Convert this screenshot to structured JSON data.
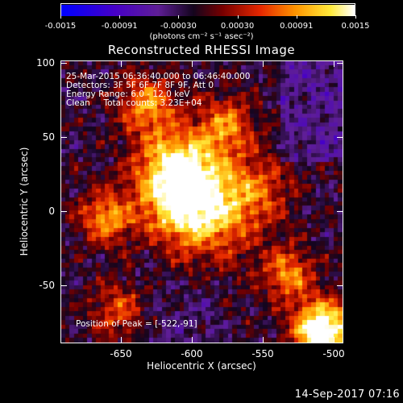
{
  "colorbar": {
    "tick_labels": [
      "-0.0015",
      "-0.00091",
      "-0.00030",
      "0.00030",
      "0.00091",
      "0.0015"
    ],
    "units": "(photons cm⁻² s⁻¹ asec⁻²)"
  },
  "plot": {
    "title": "Reconstructed RHESSI Image",
    "info_lines": [
      "25-Mar-2015 06:36:40.000 to 06:46:40.000",
      "Detectors: 3F 5F 6F 7F 8F 9F, Att 0",
      "Energy Range: 6.0 - 12.0 keV",
      "Clean     Total counts: 3.23E+04"
    ],
    "peak_text": "Position of Peak = [-522,-91]",
    "x_ticks": [
      "-650",
      "-600",
      "-550",
      "-500"
    ],
    "y_ticks": [
      "100",
      "50",
      "0",
      "-50"
    ],
    "xlabel": "Heliocentric X (arcsec)",
    "ylabel": "Heliocentric Y (arcsec)"
  },
  "footer": {
    "timestamp": "14-Sep-2017 07:16"
  },
  "chart_data": {
    "type": "heatmap",
    "title": "Reconstructed RHESSI Image",
    "xlabel": "Heliocentric X (arcsec)",
    "ylabel": "Heliocentric Y (arcsec)",
    "xlim": [
      -680,
      -500
    ],
    "ylim": [
      -91,
      101
    ],
    "x_ticks": [
      -650,
      -600,
      -550,
      -500
    ],
    "y_ticks": [
      100,
      50,
      0,
      -50
    ],
    "color_range": [
      -0.0015,
      0.0015
    ],
    "colormap": "blue-purple-red-yellow-white",
    "peak_position": [
      -522,
      -91
    ]
  }
}
